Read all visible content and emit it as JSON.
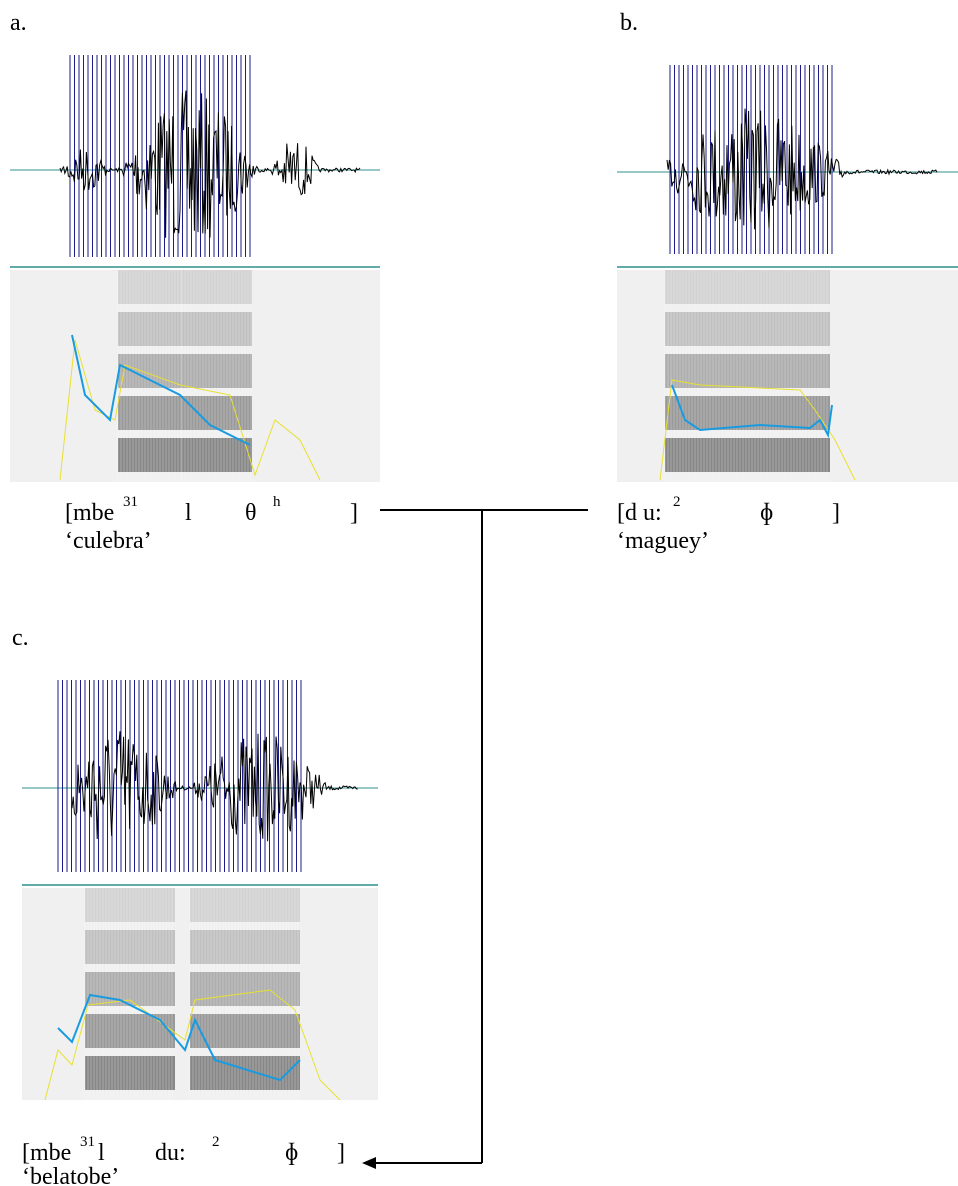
{
  "panels": [
    {
      "label": "a.",
      "transcription": [
        "[mbe",
        "31",
        "l",
        "θ",
        "h",
        "]"
      ],
      "gloss": "‘culebra’"
    },
    {
      "label": "b.",
      "transcription": [
        "[d u:",
        "2",
        "ɸ",
        "]"
      ],
      "gloss": "‘maguey’"
    },
    {
      "label": "c.",
      "transcription": [
        "[mbe",
        "31",
        "l",
        "du:",
        "2",
        "ɸ",
        "]"
      ],
      "gloss": "‘belatobe’"
    }
  ]
}
